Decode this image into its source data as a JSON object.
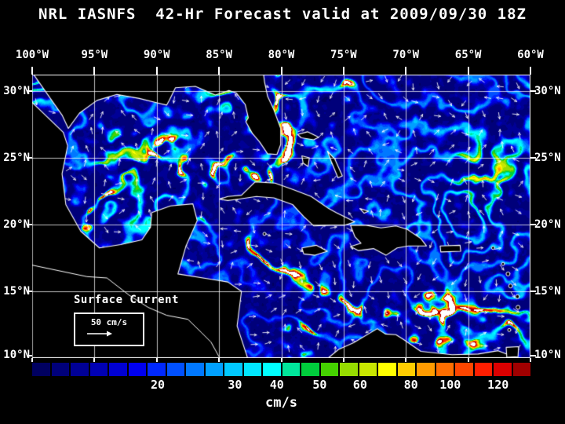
{
  "title": "NRL IASNFS  42-Hr Forecast valid at 2009/09/30 18Z",
  "axes": {
    "top_lon_labels": [
      "100°W",
      "95°W",
      "90°W",
      "85°W",
      "80°W",
      "75°W",
      "70°W",
      "65°W",
      "60°W"
    ],
    "left_lat_labels": [
      "30°N",
      "25°N",
      "20°N",
      "15°N",
      "10°N"
    ],
    "right_lat_labels": [
      "30°N",
      "25°N",
      "20°N",
      "15°N",
      "10°N"
    ]
  },
  "legend": {
    "label": "Surface Current",
    "scale_label": "50 cm/s"
  },
  "colorbar": {
    "unit": "cm/s",
    "tick_labels": [
      "20",
      "30",
      "40",
      "50",
      "60",
      "80",
      "100",
      "120"
    ],
    "tick_positions_pct": [
      25.2,
      40.7,
      49.1,
      57.7,
      65.8,
      76.0,
      83.9,
      93.5
    ],
    "colors": [
      "#000060",
      "#00007a",
      "#000096",
      "#0000b4",
      "#0000d2",
      "#0000f0",
      "#0028ff",
      "#0050ff",
      "#0078ff",
      "#00a0ff",
      "#00c8ff",
      "#00e6ff",
      "#00ffff",
      "#00e69b",
      "#00cd3c",
      "#45d200",
      "#96dc00",
      "#c8e600",
      "#ffff00",
      "#ffcd00",
      "#ff9b00",
      "#ff6e00",
      "#ff4600",
      "#ff1e00",
      "#dc0000",
      "#a00000"
    ]
  },
  "map": {
    "lon_extent_w": [
      100,
      60
    ],
    "lat_extent_n": [
      10,
      30
    ],
    "background_color": "#000000",
    "coastline_color": "#ffffff",
    "grid_color": "#ffffff"
  },
  "chart_data": {
    "type": "heatmap",
    "title": "NRL IASNFS 42-Hr Forecast valid at 2009/09/30 18Z",
    "variable": "Surface Current speed",
    "unit": "cm/s",
    "x_ticks": [
      "100°W",
      "95°W",
      "90°W",
      "85°W",
      "80°W",
      "75°W",
      "70°W",
      "65°W",
      "60°W"
    ],
    "y_ticks": [
      "30°N",
      "25°N",
      "20°N",
      "15°N",
      "10°N"
    ],
    "colorbar_values": [
      20,
      30,
      40,
      50,
      60,
      80,
      100,
      120
    ],
    "legend_position": "bottom"
  }
}
